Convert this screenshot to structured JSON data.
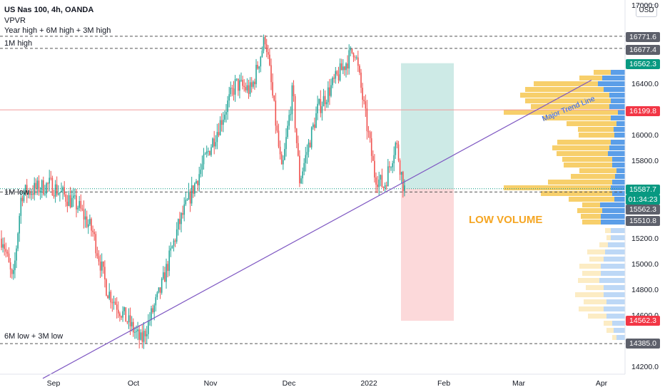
{
  "header": {
    "title": "US Nas 100, 4h, OANDA",
    "indicator": "VPVR",
    "indicator2": "Year high + 6M high + 3M high"
  },
  "levels": {
    "m1_high": "1M high",
    "m1_low": "1M low",
    "m6_low": "6M low + 3M low"
  },
  "annotations": {
    "low_volume": "LOW VOLUME",
    "major_trend": "Major Trend Line"
  },
  "axis": {
    "currency": "USD",
    "top_tick": "17000.0",
    "y_ticks": [
      "16400.0",
      "16000.0",
      "15800.0",
      "15200.0",
      "15000.0",
      "14800.0",
      "14600.0",
      "14200.0"
    ],
    "x_ticks": [
      "Sep",
      "Oct",
      "Nov",
      "Dec",
      "2022",
      "Feb",
      "Mar",
      "Apr"
    ]
  },
  "price_tags": [
    {
      "label": "16771.6",
      "color": "#5d606b"
    },
    {
      "label": "16677.4",
      "color": "#5d606b"
    },
    {
      "label": "16562.3",
      "color": "#089981"
    },
    {
      "label": "16199.8",
      "color": "#f23645"
    },
    {
      "label": "15587.7",
      "color": "#089981"
    },
    {
      "label": "01:34:23",
      "color": "#089981"
    },
    {
      "label": "15562.3",
      "color": "#5d606b"
    },
    {
      "label": "15510.8",
      "color": "#5d606b"
    },
    {
      "label": "14562.3",
      "color": "#f23645"
    },
    {
      "label": "14385.0",
      "color": "#5d606b"
    }
  ],
  "colors": {
    "up": "#26a69a",
    "down": "#ef5350",
    "profit_zone": "#cdeae6",
    "loss_zone": "#fcd9da",
    "vp_up": "#5b9ee8",
    "vp_down": "#f7cf6b",
    "trend_line": "#7e57c2"
  },
  "chart_data": {
    "type": "candlestick",
    "symbol": "US Nas 100",
    "timeframe": "4h",
    "source": "OANDA",
    "ylim": [
      14200,
      17000
    ],
    "path_anchors": [
      [
        "Aug",
        15200
      ],
      [
        "Aug",
        14850
      ],
      [
        "Aug",
        15550
      ],
      [
        "Aug",
        15620
      ],
      [
        "Sep",
        15450
      ],
      [
        "Sep",
        15250
      ],
      [
        "Sep",
        14800
      ],
      [
        "Oct",
        14400
      ],
      [
        "Oct",
        14800
      ],
      [
        "Oct",
        15300
      ],
      [
        "Oct",
        15650
      ],
      [
        "Nov",
        16050
      ],
      [
        "Nov",
        16400
      ],
      [
        "Nov",
        16350
      ],
      [
        "Nov",
        16770
      ],
      [
        "Dec",
        15700
      ],
      [
        "Dec",
        16350
      ],
      [
        "Dec",
        15650
      ],
      [
        "Dec",
        16200
      ],
      [
        "2022",
        16680
      ],
      [
        "2022",
        15700
      ],
      [
        "2022",
        15600
      ],
      [
        "2022",
        15950
      ],
      [
        "2022",
        15587.7
      ]
    ],
    "levels": [
      {
        "label": "1M high",
        "value": 16771.6
      },
      {
        "label": "",
        "value": 16677.4
      },
      {
        "label": "1M low",
        "value": 15562.3
      },
      {
        "label": "6M low + 3M low",
        "value": 14385.0
      },
      {
        "label": "",
        "value": 16199.8
      }
    ],
    "position": {
      "entry": 15587.7,
      "target": 16562.3,
      "stop": 14562.3
    },
    "trend_line": {
      "label": "Major Trend Line",
      "from": 14115,
      "to": 16431
    },
    "last_price": 15587.7,
    "countdown": "01:34:23",
    "volume_profile_note": "long/short split bars on right side"
  }
}
